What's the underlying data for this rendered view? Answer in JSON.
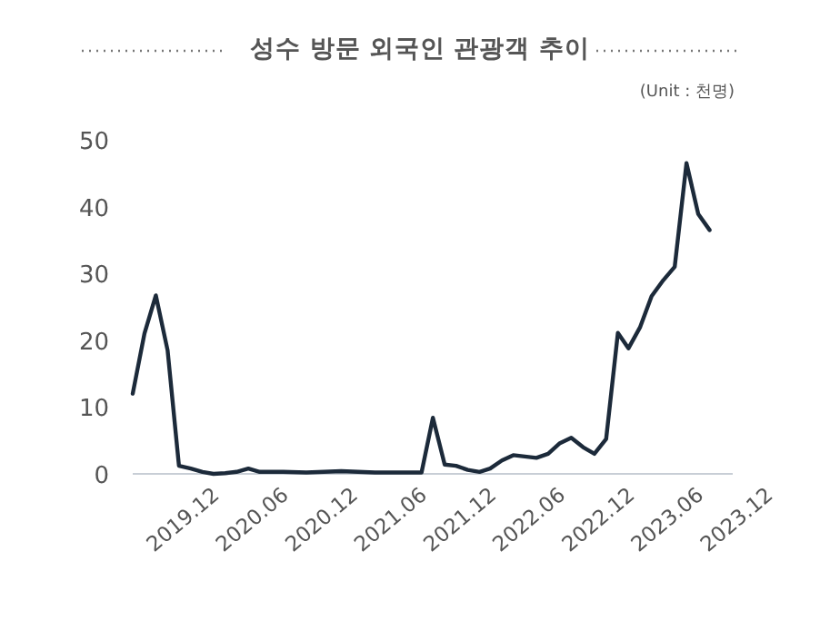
{
  "chart_data": {
    "type": "line",
    "title": "성수 방문 외국인 관광객 추이",
    "annotations": [
      "(Unit : 천명)"
    ],
    "x": [
      "2019-08",
      "2019-09",
      "2019-10",
      "2019-11",
      "2019-12",
      "2020-01",
      "2020-02",
      "2020-03",
      "2020-04",
      "2020-05",
      "2020-06",
      "2020-07",
      "2020-09",
      "2020-11",
      "2021-02",
      "2021-05",
      "2021-08",
      "2021-09",
      "2021-10",
      "2021-11",
      "2021-12",
      "2022-01",
      "2022-02",
      "2022-03",
      "2022-04",
      "2022-05",
      "2022-07",
      "2022-08",
      "2022-09",
      "2022-10",
      "2022-11",
      "2022-12",
      "2023-01",
      "2023-02",
      "2023-03",
      "2023-04",
      "2023-05",
      "2023-06",
      "2023-07",
      "2023-08",
      "2023-09",
      "2023-10"
    ],
    "series": [
      {
        "color": "#1c2a3a",
        "values": [
          12,
          21,
          26.7,
          18.5,
          1.2,
          0.8,
          0.3,
          0,
          0.1,
          0.3,
          0.8,
          0.3,
          0.3,
          0.2,
          0.4,
          0.2,
          0.2,
          0.2,
          8.4,
          1.4,
          1.2,
          0.6,
          0.3,
          0.8,
          2,
          2.8,
          2.4,
          3,
          4.6,
          5.4,
          4,
          3,
          5.2,
          21.1,
          18.8,
          22,
          26.6,
          29,
          31,
          46.5,
          38.9,
          36.5
        ]
      }
    ],
    "xlim": [
      "2019-08",
      "2023-12"
    ],
    "xticks": [
      {
        "value": "2019-12",
        "label": "2019.12"
      },
      {
        "value": "2020-06",
        "label": "2020.06"
      },
      {
        "value": "2020-12",
        "label": "2020.12"
      },
      {
        "value": "2021-06",
        "label": "2021.06"
      },
      {
        "value": "2021-12",
        "label": "2021.12"
      },
      {
        "value": "2022-06",
        "label": "2022.06"
      },
      {
        "value": "2022-12",
        "label": "2022.12"
      },
      {
        "value": "2023-06",
        "label": "2023.06"
      },
      {
        "value": "2023-12",
        "label": "2023.12"
      }
    ],
    "ylim": [
      0,
      50
    ],
    "yticks": [
      0,
      10,
      20,
      30,
      40,
      50
    ],
    "grid": false,
    "marker": "none",
    "line_style": "solid"
  }
}
